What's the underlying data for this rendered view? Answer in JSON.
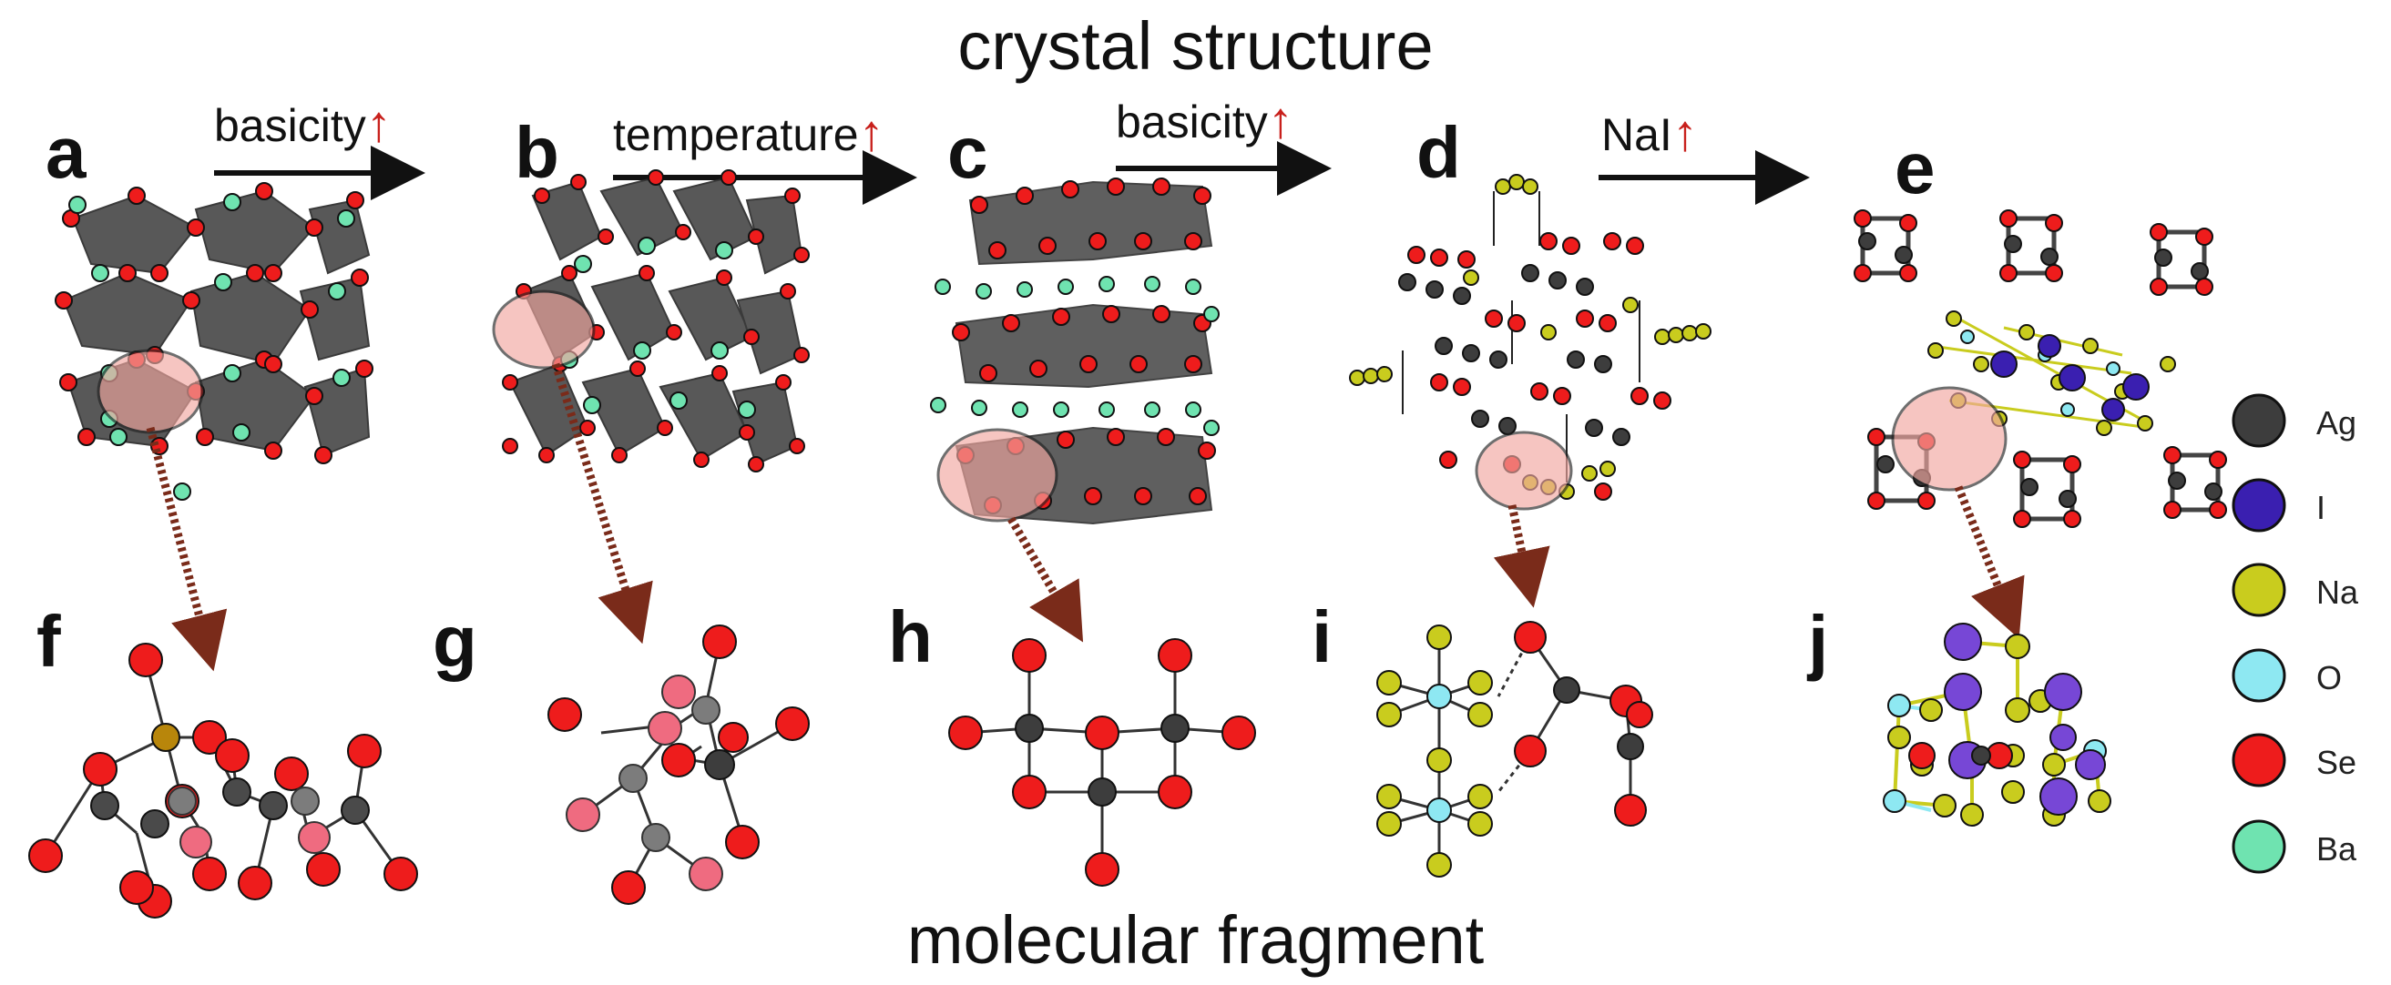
{
  "header": {
    "title": "crystal structure"
  },
  "footer": {
    "title": "molecular fragment"
  },
  "panels": {
    "top": [
      "a",
      "b",
      "c",
      "d",
      "e"
    ],
    "bottom": [
      "f",
      "g",
      "h",
      "i",
      "j"
    ]
  },
  "conditions": [
    {
      "label": "basicity",
      "arrow": "↑"
    },
    {
      "label": "temperature",
      "arrow": "↑"
    },
    {
      "label": "basicity",
      "arrow": "↑"
    },
    {
      "label": "NaI",
      "arrow": "↑"
    }
  ],
  "legend": [
    {
      "label": "Ag",
      "color": "#3d3d3d"
    },
    {
      "label": "I",
      "color": "#3a1fb0"
    },
    {
      "label": "Na",
      "color": "#c9cc1e"
    },
    {
      "label": "O",
      "color": "#8ee8f2"
    },
    {
      "label": "Se",
      "color": "#ee1c1c"
    },
    {
      "label": "Ba",
      "color": "#6fe3b0"
    }
  ],
  "colors": {
    "arrow_up": "#c8201c",
    "highlight": "#f2a7a0",
    "polyhedron": "#4a4a4a",
    "dotted_arrow": "#7a2b1a"
  }
}
